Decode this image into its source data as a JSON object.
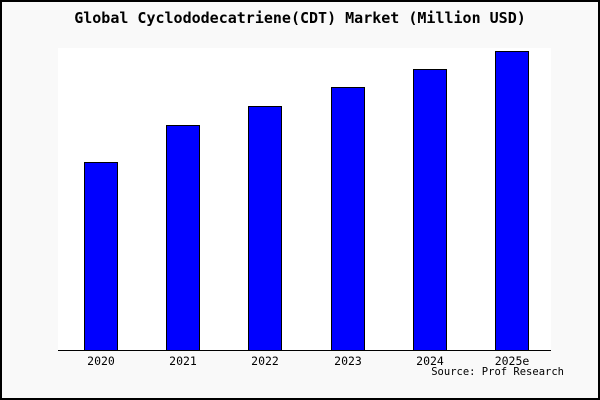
{
  "chart_data": {
    "type": "bar",
    "title": "Global Cyclododecatriene(CDT) Market (Million USD)",
    "categories": [
      "2020",
      "2021",
      "2022",
      "2023",
      "2024",
      "2025e"
    ],
    "values": [
      63,
      75.3,
      81.7,
      88,
      94,
      100
    ],
    "values_note": "No y-axis tick labels shown in chart; values estimated from bar pixel heights as percent of the tallest (2025e) bar",
    "xlabel": "",
    "ylabel": "",
    "ylim": [
      0,
      101
    ],
    "grid": false,
    "legend": false,
    "y_axis_ticks_shown": false,
    "bar_color": "#0000ff",
    "bar_border_color": "#000000"
  },
  "footer": {
    "source": "Source: Prof Research"
  },
  "colors": {
    "figure_background": "#f9f9f9",
    "plot_background": "#ffffff",
    "figure_border": "#000000",
    "axis_line": "#000000",
    "text": "#000000"
  }
}
